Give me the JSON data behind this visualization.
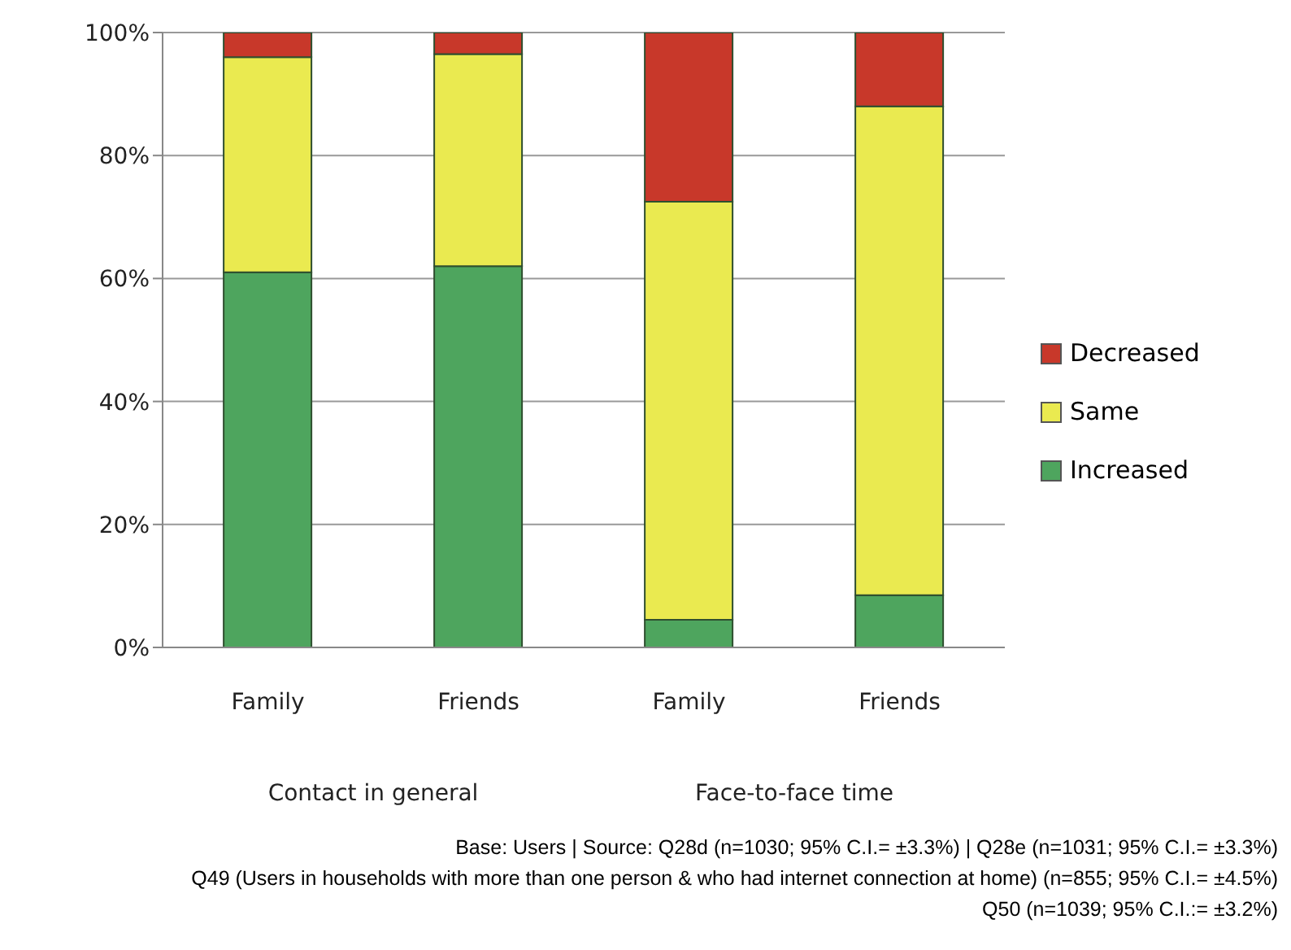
{
  "chart_data": {
    "type": "bar",
    "stacked": true,
    "categories": [
      "Family",
      "Friends",
      "Family",
      "Friends"
    ],
    "series": [
      {
        "name": "Increased",
        "color": "#4ea55e",
        "values": [
          61,
          62,
          4.5,
          8.5
        ]
      },
      {
        "name": "Same",
        "color": "#eaea50",
        "values": [
          35,
          34.5,
          68,
          79.5
        ]
      },
      {
        "name": "Decreased",
        "color": "#c8382a",
        "values": [
          4,
          3.5,
          27.5,
          12
        ]
      }
    ],
    "ylim": [
      0,
      100
    ],
    "yticks": [
      {
        "value": 0,
        "label": "0%"
      },
      {
        "value": 20,
        "label": "20%"
      },
      {
        "value": 40,
        "label": "40%"
      },
      {
        "value": 60,
        "label": "60%"
      },
      {
        "value": 80,
        "label": "80%"
      },
      {
        "value": 100,
        "label": "100%"
      }
    ],
    "grid": "y",
    "legend": "right",
    "annotations": [
      "Contact in general",
      "Face-to-face time",
      "Base: Users | Source: Q28d (n=1030; 95% C.I.= ±3.3%) | Q28e (n=1031; 95% C.I.= ±3.3%)",
      "Q49 (Users in households with more than one person & who had internet connection at home) (n=855; 95% C.I.= ±4.5%)",
      "Q50 (n=1039; 95% C.I.:= ±3.2%)"
    ]
  }
}
